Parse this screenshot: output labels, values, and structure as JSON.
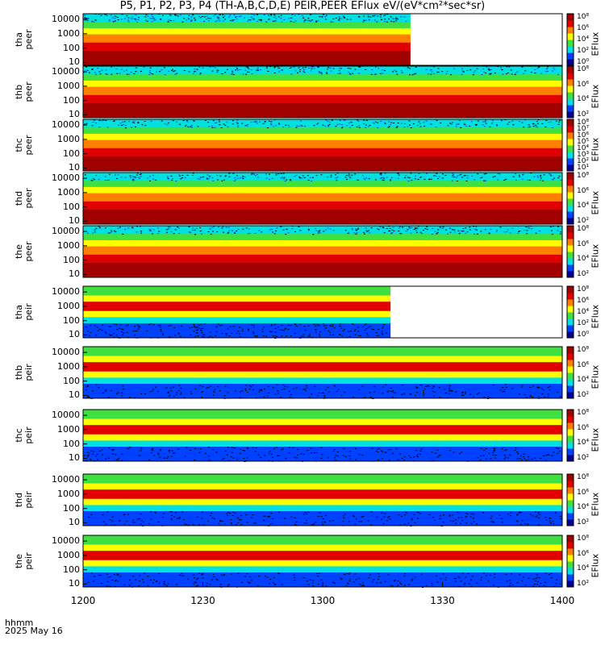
{
  "title": "P5, P1, P2, P3, P4 (TH-A,B,C,D,E) PEIR,PEER EFlux eV/(eV*cm²*sec*sr)",
  "x_axis": {
    "ticks": [
      "1200",
      "1230",
      "1300",
      "1330",
      "1400"
    ],
    "time_label": "hhmm",
    "date_label": "2025 May 16"
  },
  "colorbar_title": "EFlux",
  "chart_data": {
    "type": "heatmap",
    "x_range": [
      "12:00",
      "14:00"
    ],
    "y_scale": "log",
    "panels": [
      {
        "label": [
          "tha",
          "peer"
        ],
        "yticks": [
          "10000",
          "1000",
          "100",
          "10"
        ],
        "cbticks": [
          "10⁸",
          "10⁶",
          "10⁴",
          "10²",
          "10⁰"
        ],
        "data_end": "13:22"
      },
      {
        "label": [
          "thb",
          "peer"
        ],
        "yticks": [
          "10000",
          "1000",
          "100",
          "10"
        ],
        "cbticks": [
          "10⁸",
          "10⁶",
          "10⁴",
          "10²"
        ],
        "data_end": "14:00"
      },
      {
        "label": [
          "thc",
          "peer"
        ],
        "yticks": [
          "10000",
          "1000",
          "100",
          "10"
        ],
        "cbticks": [
          "10⁸",
          "10⁷",
          "10⁶",
          "10⁵",
          "10⁴",
          "10³",
          "10²",
          "10¹"
        ],
        "data_end": "14:00"
      },
      {
        "label": [
          "thd",
          "peer"
        ],
        "yticks": [
          "10000",
          "1000",
          "100",
          "10"
        ],
        "cbticks": [
          "10⁸",
          "10⁶",
          "10⁴",
          "10²"
        ],
        "data_end": "14:00"
      },
      {
        "label": [
          "the",
          "peer"
        ],
        "yticks": [
          "10000",
          "1000",
          "100",
          "10"
        ],
        "cbticks": [
          "10⁸",
          "10⁶",
          "10⁴",
          "10²"
        ],
        "data_end": "14:00"
      },
      {
        "label": [
          "tha",
          "peir"
        ],
        "yticks": [
          "10000",
          "1000",
          "100",
          "10"
        ],
        "cbticks": [
          "10⁸",
          "10⁶",
          "10⁴",
          "10²",
          "10⁰"
        ],
        "data_end": "13:17"
      },
      {
        "label": [
          "thb",
          "peir"
        ],
        "yticks": [
          "10000",
          "1000",
          "100",
          "10"
        ],
        "cbticks": [
          "10⁸",
          "10⁶",
          "10⁴",
          "10²"
        ],
        "data_end": "14:00"
      },
      {
        "label": [
          "thc",
          "peir"
        ],
        "yticks": [
          "10000",
          "1000",
          "100",
          "10"
        ],
        "cbticks": [
          "10⁸",
          "10⁶",
          "10⁴",
          "10²"
        ],
        "data_end": "14:00"
      },
      {
        "label": [
          "thd",
          "peir"
        ],
        "yticks": [
          "10000",
          "1000",
          "100",
          "10"
        ],
        "cbticks": [
          "10⁸",
          "10⁶",
          "10⁴",
          "10²"
        ],
        "data_end": "14:00"
      },
      {
        "label": [
          "the",
          "peir"
        ],
        "yticks": [
          "10000",
          "1000",
          "100",
          "10"
        ],
        "cbticks": [
          "10⁸",
          "10⁶",
          "10⁴",
          "10²"
        ],
        "data_end": "14:00"
      }
    ]
  },
  "colors": {
    "dark_red": "#a00000",
    "red": "#e00000",
    "orange": "#ff8000",
    "yellow": "#ffff00",
    "green": "#40e040",
    "cyan": "#00e0e0",
    "blue": "#0040ff",
    "navy": "#000090",
    "black": "#000000",
    "white": "#ffffff"
  }
}
